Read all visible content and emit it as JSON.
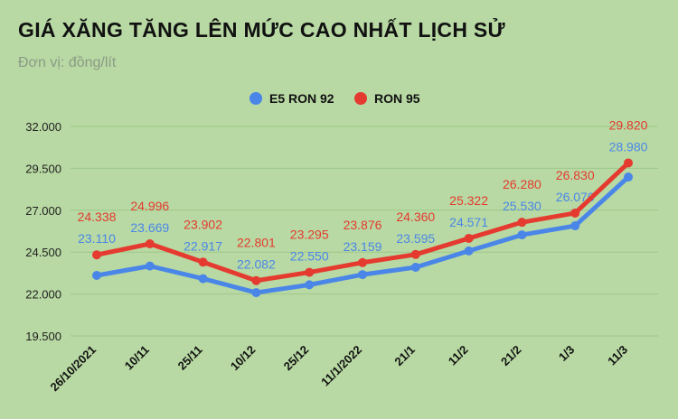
{
  "header": {
    "title": "GIÁ XĂNG TĂNG LÊN MỨC CAO NHẤT LỊCH SỬ",
    "subtitle": "Đơn vị: đồng/lít"
  },
  "colors": {
    "background": "#b8d9a3",
    "e5": "#4a86e8",
    "ron95": "#e53a2f",
    "grid": "#9ec78a"
  },
  "chart_data": {
    "type": "line",
    "categories": [
      "26/10/2021",
      "10/11",
      "25/11",
      "10/12",
      "25/12",
      "11/1/2022",
      "21/1",
      "11/2",
      "21/2",
      "1/3",
      "11/3"
    ],
    "series": [
      {
        "name": "E5 RON 92",
        "values": [
          23110,
          23669,
          22917,
          22082,
          22550,
          23159,
          23595,
          24571,
          25530,
          26070,
          28980
        ],
        "labels": [
          "23.110",
          "23.669",
          "22.917",
          "22.082",
          "22.550",
          "23.159",
          "23.595",
          "24.571",
          "25.530",
          "26.070",
          "28.980"
        ]
      },
      {
        "name": "RON 95",
        "values": [
          24338,
          24996,
          23902,
          22801,
          23295,
          23876,
          24360,
          25322,
          26280,
          26830,
          29820
        ],
        "labels": [
          "24.338",
          "24.996",
          "23.902",
          "22.801",
          "23.295",
          "23.876",
          "24.360",
          "25.322",
          "26.280",
          "26.830",
          "29.820"
        ]
      }
    ],
    "yticks": [
      "19.500",
      "22.000",
      "24.500",
      "27.000",
      "29.500",
      "32.000"
    ],
    "ytick_values": [
      19500,
      22000,
      24500,
      27000,
      29500,
      32000
    ],
    "ylim": [
      19500,
      32000
    ],
    "grid": true,
    "legend": "top-center"
  }
}
